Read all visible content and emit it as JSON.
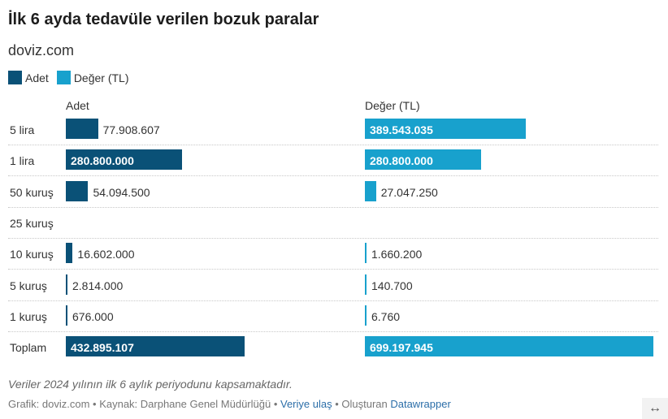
{
  "title": "İlk 6 ayda tedavüle verilen bozuk paralar",
  "subtitle": "doviz.com",
  "legend": [
    {
      "label": "Adet",
      "color": "#0a5177"
    },
    {
      "label": "Değer (TL)",
      "color": "#18a1cd"
    }
  ],
  "columns": {
    "adet": "Adet",
    "deger": "Değer (TL)"
  },
  "chart_data": {
    "type": "bar",
    "categories": [
      "5 lira",
      "1 lira",
      "50 kuruş",
      "25 kuruş",
      "10 kuruş",
      "5 kuruş",
      "1 kuruş",
      "Toplam"
    ],
    "series": [
      {
        "name": "Adet",
        "color": "#0a5177",
        "values": [
          77908607,
          280800000,
          54094500,
          null,
          16602000,
          2814000,
          676000,
          432895107
        ],
        "labels": [
          "77.908.607",
          "280.800.000",
          "54.094.500",
          "",
          "16.602.000",
          "2.814.000",
          "676.000",
          "432.895.107"
        ]
      },
      {
        "name": "Değer (TL)",
        "color": "#18a1cd",
        "values": [
          389543035,
          280800000,
          27047250,
          null,
          1660200,
          140700,
          6760,
          699197945
        ],
        "labels": [
          "389.543.035",
          "280.800.000",
          "27.047.250",
          "",
          "1.660.200",
          "140.700",
          "6.760",
          "699.197.945"
        ]
      }
    ]
  },
  "note": "Veriler 2024 yılının ilk 6 aylık periyodunu kapsamaktadır.",
  "footer": {
    "prefix": "Grafik: doviz.com • Kaynak: Darphane Genel Müdürlüğü • ",
    "data_link": "Veriye ulaş",
    "middle": " • Oluşturan ",
    "tool_link": "Datawrapper"
  },
  "expand_icon": "↔"
}
